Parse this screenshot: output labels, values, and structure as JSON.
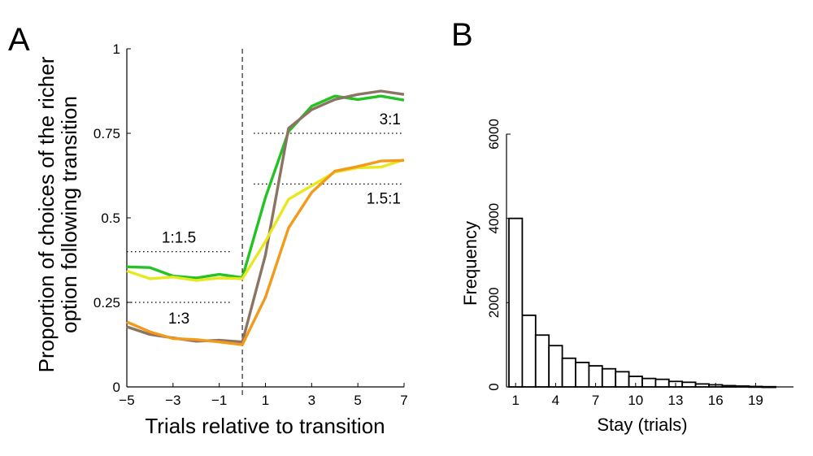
{
  "panelA": {
    "letter": "A",
    "xlabel": "Trials relative to transition",
    "ylabel_line1": "Proportion of choices of the richer",
    "ylabel_line2": "option following transition",
    "xticks": [
      "−5",
      "−3",
      "−1",
      "1",
      "3",
      "5",
      "7"
    ],
    "yticks": [
      "0",
      "0.25",
      "0.5",
      "0.75",
      "1"
    ],
    "ratio_labels": {
      "r3_1": "3:1",
      "r15_1": "1.5:1",
      "r1_15": "1:1.5",
      "r1_3": "1:3"
    }
  },
  "panelB": {
    "letter": "B",
    "xlabel": "Stay (trials)",
    "ylabel": "Frequency",
    "xticks": [
      "1",
      "4",
      "7",
      "10",
      "13",
      "16",
      "19"
    ],
    "yticks": [
      "0",
      "2000",
      "4000",
      "6000"
    ]
  },
  "chart_data": [
    {
      "type": "line",
      "xlabel": "Trials relative to transition",
      "ylabel": "Proportion of choices of the richer option following transition",
      "xlim": [
        -5,
        7
      ],
      "ylim": [
        0,
        1
      ],
      "grid": false,
      "x": [
        -5,
        -4,
        -3,
        -2,
        -1,
        0,
        1,
        2,
        3,
        4,
        5,
        6,
        7
      ],
      "series": [
        {
          "color": "#22c322",
          "values": [
            0.355,
            0.353,
            0.328,
            0.322,
            0.333,
            0.323,
            0.56,
            0.755,
            0.83,
            0.86,
            0.85,
            0.86,
            0.848
          ]
        },
        {
          "color": "#8b7562",
          "values": [
            0.178,
            0.155,
            0.145,
            0.135,
            0.138,
            0.133,
            0.39,
            0.765,
            0.82,
            0.85,
            0.865,
            0.875,
            0.865
          ]
        },
        {
          "color": "#e8e820",
          "values": [
            0.343,
            0.32,
            0.325,
            0.315,
            0.322,
            0.32,
            0.43,
            0.555,
            0.595,
            0.635,
            0.648,
            0.65,
            0.672
          ]
        },
        {
          "color": "#f29a1a",
          "values": [
            0.192,
            0.163,
            0.143,
            0.14,
            0.133,
            0.125,
            0.265,
            0.47,
            0.575,
            0.638,
            0.652,
            0.668,
            0.67
          ]
        }
      ],
      "reference_lines": [
        {
          "label": "3:1",
          "y": 0.75,
          "x_range": [
            0,
            7
          ]
        },
        {
          "label": "1.5:1",
          "y": 0.6,
          "x_range": [
            0,
            7
          ]
        },
        {
          "label": "1:1.5",
          "y": 0.4,
          "x_range": [
            -5,
            0
          ]
        },
        {
          "label": "1:3",
          "y": 0.25,
          "x_range": [
            -5,
            0
          ]
        }
      ],
      "vertical_line": {
        "x": 0,
        "style": "dashed"
      }
    },
    {
      "type": "bar",
      "xlabel": "Stay (trials)",
      "ylabel": "Frequency",
      "ylim": [
        0,
        6000
      ],
      "grid": false,
      "categories": [
        1,
        2,
        3,
        4,
        5,
        6,
        7,
        8,
        9,
        10,
        11,
        12,
        13,
        14,
        15,
        16,
        17,
        18,
        19,
        20
      ],
      "values": [
        4000,
        1700,
        1230,
        980,
        680,
        580,
        500,
        430,
        360,
        250,
        200,
        180,
        130,
        110,
        70,
        50,
        30,
        20,
        10,
        5
      ]
    }
  ]
}
